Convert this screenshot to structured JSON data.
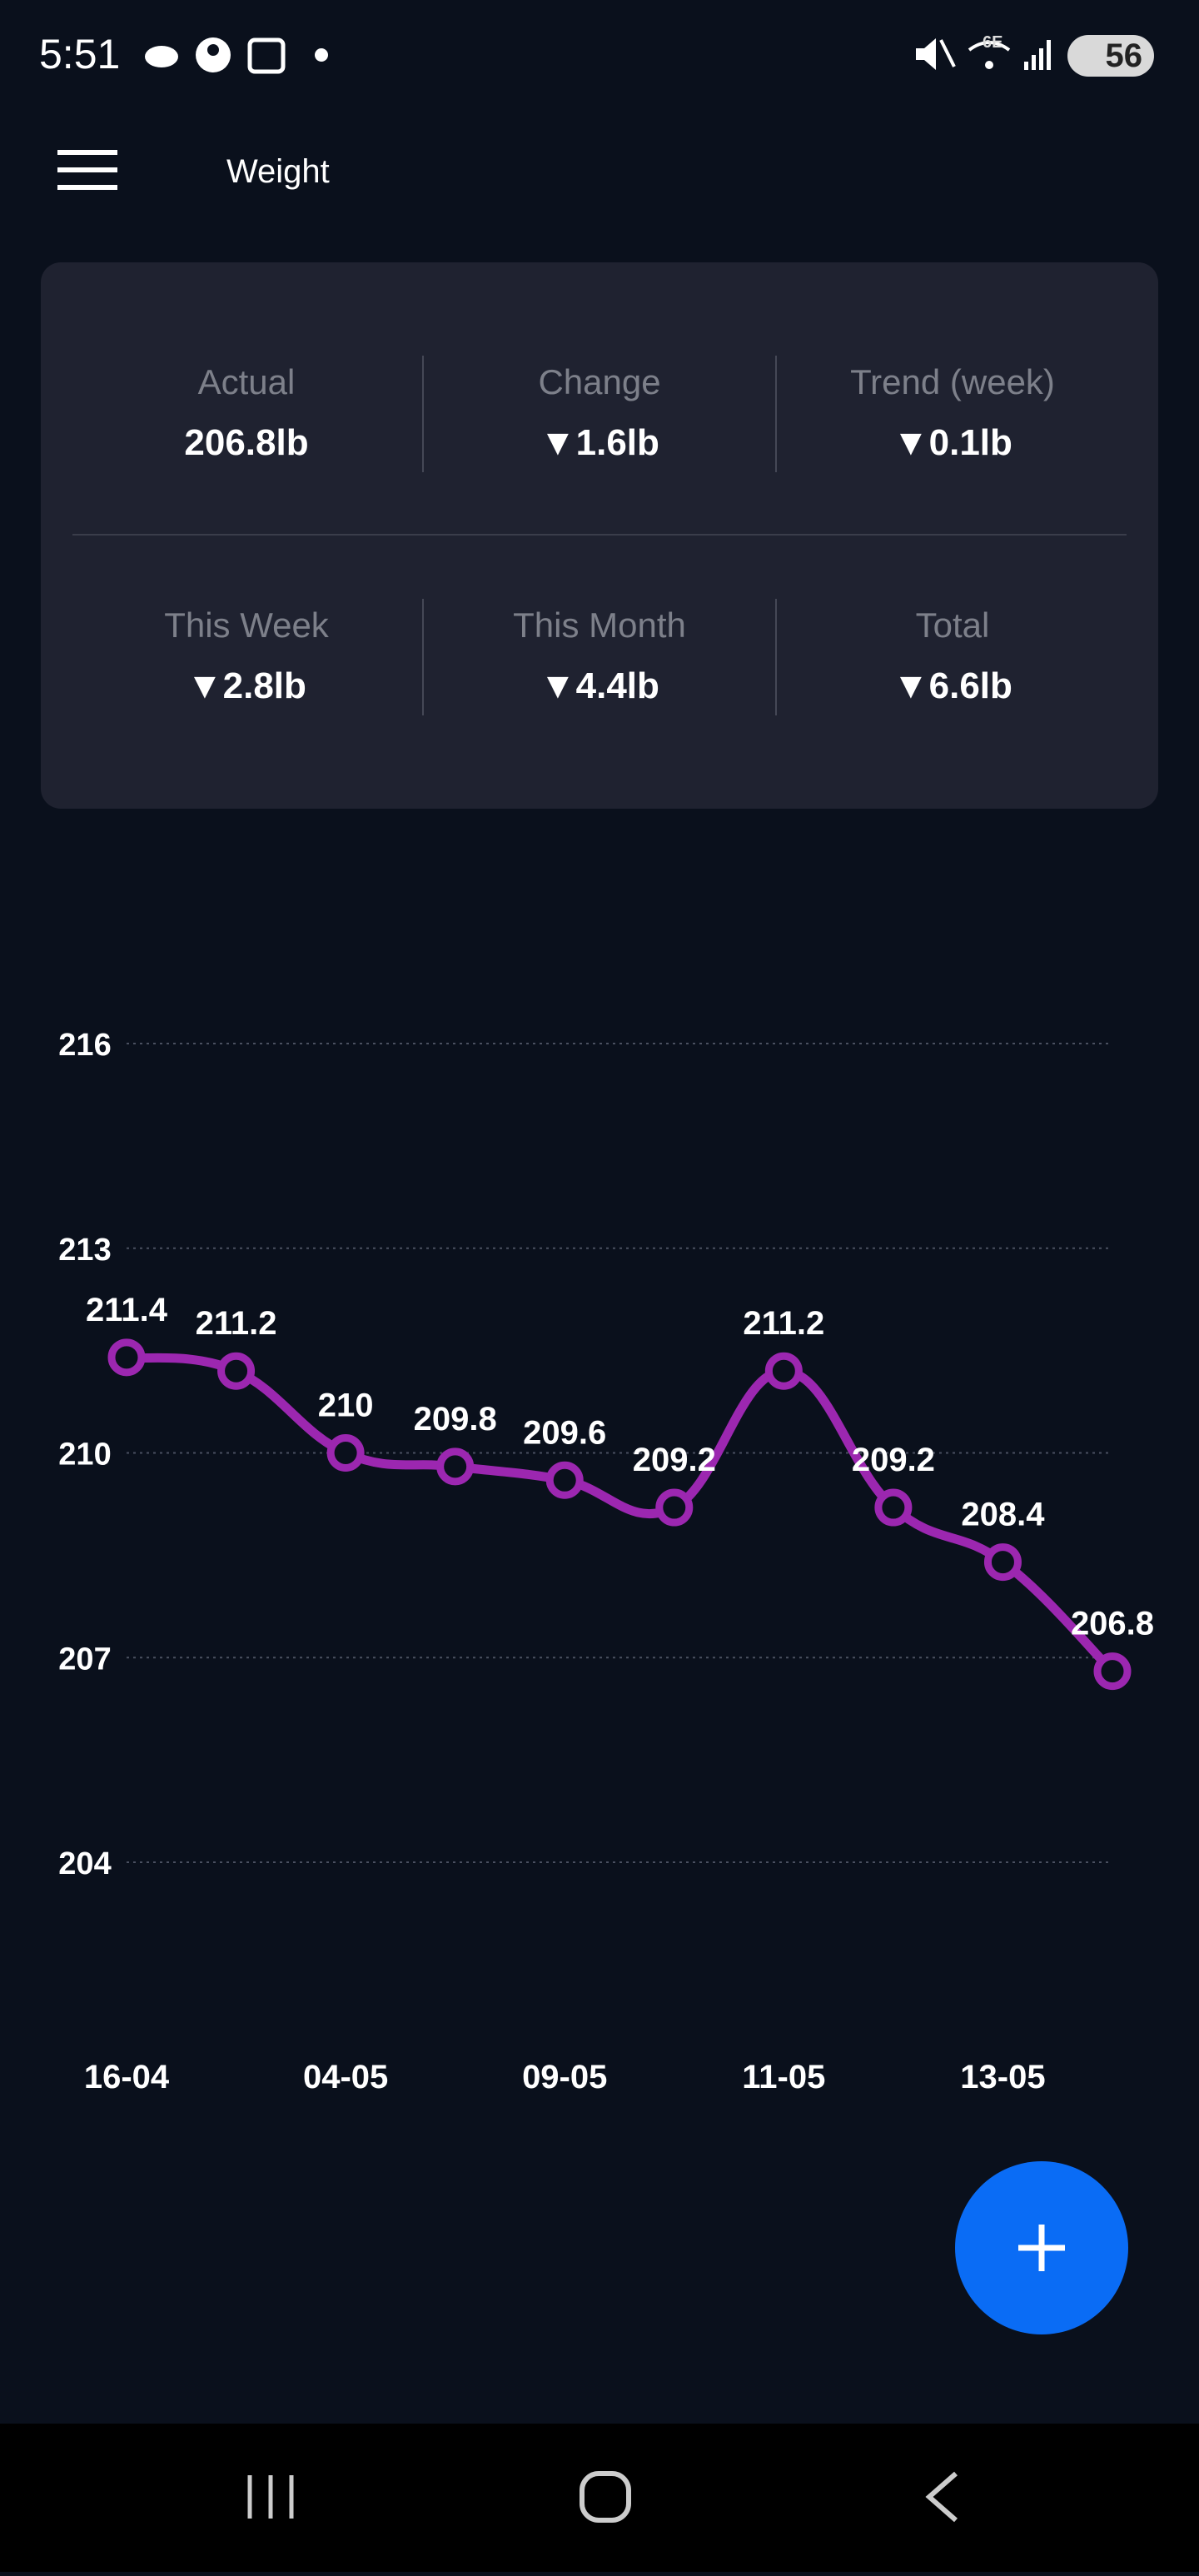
{
  "status_bar": {
    "time": "5:51",
    "network": "6E",
    "battery": "56"
  },
  "header": {
    "title": "Weight"
  },
  "stats": [
    {
      "label": "Actual",
      "value": "206.8lb"
    },
    {
      "label": "Change",
      "value": "▼1.6lb"
    },
    {
      "label": "Trend (week)",
      "value": "▼0.1lb"
    },
    {
      "label": "This Week",
      "value": "▼2.8lb"
    },
    {
      "label": "This Month",
      "value": "▼4.4lb"
    },
    {
      "label": "Total",
      "value": "▼6.6lb"
    }
  ],
  "chart_data": {
    "type": "line",
    "categories": [
      "16-04",
      null,
      "04-05",
      null,
      "09-05",
      null,
      "11-05",
      null,
      "13-05",
      null
    ],
    "values": [
      211.4,
      211.2,
      210,
      209.8,
      209.6,
      209.2,
      211.2,
      209.2,
      208.4,
      206.8
    ],
    "color": "#9c27b0",
    "ylim": [
      204,
      216
    ],
    "yticks": [
      204,
      207,
      210,
      213,
      216
    ],
    "grid": true
  }
}
